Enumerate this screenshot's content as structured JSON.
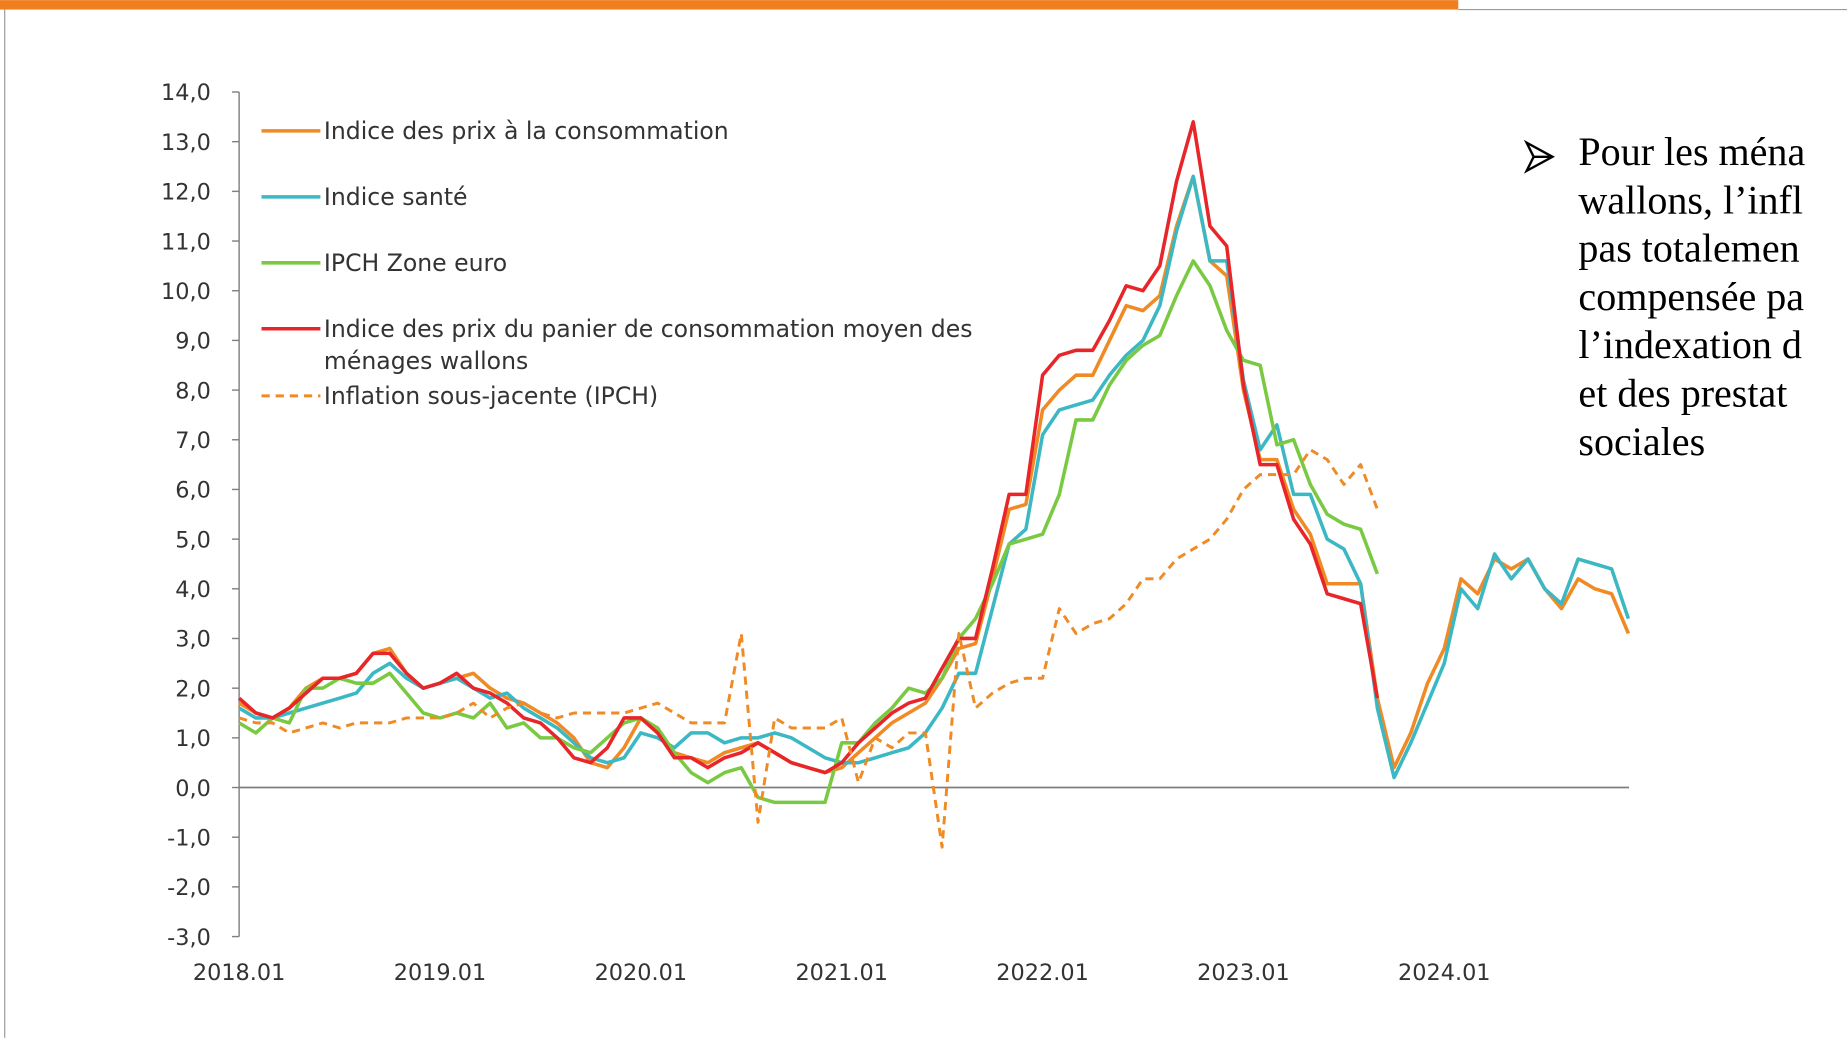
{
  "chart_data": {
    "type": "line",
    "categories": [
      "2018.01",
      null,
      null,
      null,
      null,
      null,
      null,
      null,
      null,
      null,
      null,
      null,
      "2019.01",
      null,
      null,
      null,
      null,
      null,
      null,
      null,
      null,
      null,
      null,
      null,
      "2020.01",
      null,
      null,
      null,
      null,
      null,
      null,
      null,
      null,
      null,
      null,
      null,
      "2021.01",
      null,
      null,
      null,
      null,
      null,
      null,
      null,
      null,
      null,
      null,
      null,
      "2022.01",
      null,
      null,
      null,
      null,
      null,
      null,
      null,
      null,
      null,
      null,
      null,
      "2023.01",
      null,
      null,
      null,
      null,
      null,
      null,
      null,
      null,
      null,
      null,
      null,
      "2024.01",
      null,
      null,
      null,
      null,
      null,
      null,
      null,
      null,
      null,
      null,
      null
    ],
    "ylim": [
      -3,
      14
    ],
    "yticks": [
      {
        "value": -3,
        "label": "-3,0"
      },
      {
        "value": -2,
        "label": "-2,0"
      },
      {
        "value": -1,
        "label": "-1,0"
      },
      {
        "value": 0,
        "label": "0,0"
      },
      {
        "value": 1,
        "label": "1,0"
      },
      {
        "value": 2,
        "label": "2,0"
      },
      {
        "value": 3,
        "label": "3,0"
      },
      {
        "value": 4,
        "label": "4,0"
      },
      {
        "value": 5,
        "label": "5,0"
      },
      {
        "value": 6,
        "label": "6,0"
      },
      {
        "value": 7,
        "label": "7,0"
      },
      {
        "value": 8,
        "label": "8,0"
      },
      {
        "value": 9,
        "label": "9,0"
      },
      {
        "value": 10,
        "label": "10,0"
      },
      {
        "value": 11,
        "label": "11,0"
      },
      {
        "value": 12,
        "label": "12,0"
      },
      {
        "value": 13,
        "label": "13,0"
      },
      {
        "value": 14,
        "label": "14,0"
      }
    ],
    "grid": true,
    "legend": "top-left",
    "series": [
      {
        "name": "Indice des prix à la consommation",
        "color": "#f08a24",
        "dash": false,
        "values": [
          1.7,
          1.5,
          1.4,
          1.6,
          2.0,
          2.2,
          2.2,
          2.3,
          2.7,
          2.8,
          2.3,
          2.0,
          2.1,
          2.2,
          2.3,
          2.0,
          1.8,
          1.7,
          1.5,
          1.3,
          1.0,
          0.5,
          0.4,
          0.8,
          1.4,
          1.1,
          0.7,
          0.6,
          0.5,
          0.7,
          0.8,
          0.9,
          0.7,
          0.5,
          0.4,
          0.3,
          0.4,
          0.7,
          1.0,
          1.3,
          1.5,
          1.7,
          2.2,
          2.8,
          2.9,
          4.2,
          5.6,
          5.7,
          7.6,
          8.0,
          8.3,
          8.3,
          9.0,
          9.7,
          9.6,
          9.9,
          11.3,
          12.3,
          10.6,
          10.3,
          8.0,
          6.6,
          6.6,
          5.6,
          5.1,
          4.1,
          4.1,
          4.1,
          1.8,
          0.4,
          1.1,
          2.1,
          2.8,
          4.2,
          3.9,
          4.6,
          4.4,
          4.6,
          4.0,
          3.6,
          4.2,
          4.0,
          3.9,
          3.1
        ]
      },
      {
        "name": "Indice santé",
        "color": "#3bb8c3",
        "dash": false,
        "values": [
          1.6,
          1.4,
          1.4,
          1.5,
          1.6,
          1.7,
          1.8,
          1.9,
          2.3,
          2.5,
          2.2,
          2.0,
          2.1,
          2.2,
          2.0,
          1.8,
          1.9,
          1.6,
          1.4,
          1.2,
          0.9,
          0.6,
          0.5,
          0.6,
          1.1,
          1.0,
          0.8,
          1.1,
          1.1,
          0.9,
          1.0,
          1.0,
          1.1,
          1.0,
          0.8,
          0.6,
          0.5,
          0.5,
          0.6,
          0.7,
          0.8,
          1.1,
          1.6,
          2.3,
          2.3,
          3.6,
          4.9,
          5.2,
          7.1,
          7.6,
          7.7,
          7.8,
          8.3,
          8.7,
          9.0,
          9.7,
          11.2,
          12.3,
          10.6,
          10.6,
          8.2,
          6.8,
          7.3,
          5.9,
          5.9,
          5.0,
          4.8,
          4.1,
          1.6,
          0.2,
          0.9,
          1.7,
          2.5,
          4.0,
          3.6,
          4.7,
          4.2,
          4.6,
          4.0,
          3.7,
          4.6,
          4.5,
          4.4,
          3.4
        ]
      },
      {
        "name": "IPCH Zone euro",
        "color": "#7ac943",
        "dash": false,
        "values": [
          1.3,
          1.1,
          1.4,
          1.3,
          2.0,
          2.0,
          2.2,
          2.1,
          2.1,
          2.3,
          1.9,
          1.5,
          1.4,
          1.5,
          1.4,
          1.7,
          1.2,
          1.3,
          1.0,
          1.0,
          0.8,
          0.7,
          1.0,
          1.3,
          1.4,
          1.2,
          0.7,
          0.3,
          0.1,
          0.3,
          0.4,
          -0.2,
          -0.3,
          -0.3,
          -0.3,
          -0.3,
          0.9,
          0.9,
          1.3,
          1.6,
          2.0,
          1.9,
          2.2,
          3.0,
          3.4,
          4.1,
          4.9,
          5.0,
          5.1,
          5.9,
          7.4,
          7.4,
          8.1,
          8.6,
          8.9,
          9.1,
          9.9,
          10.6,
          10.1,
          9.2,
          8.6,
          8.5,
          6.9,
          7.0,
          6.1,
          5.5,
          5.3,
          5.2,
          4.3,
          null,
          null,
          null,
          null,
          null,
          null,
          null,
          null,
          null,
          null,
          null,
          null,
          null,
          null,
          null
        ]
      },
      {
        "name": "Indice des prix du panier de consommation moyen des ménages wallons",
        "color": "#e8262a",
        "dash": false,
        "values": [
          1.8,
          1.5,
          1.4,
          1.6,
          1.9,
          2.2,
          2.2,
          2.3,
          2.7,
          2.7,
          2.3,
          2.0,
          2.1,
          2.3,
          2.0,
          1.9,
          1.7,
          1.4,
          1.3,
          1.0,
          0.6,
          0.5,
          0.8,
          1.4,
          1.4,
          1.1,
          0.6,
          0.6,
          0.4,
          0.6,
          0.7,
          0.9,
          0.7,
          0.5,
          0.4,
          0.3,
          0.5,
          0.9,
          1.2,
          1.5,
          1.7,
          1.8,
          2.4,
          3.0,
          3.0,
          4.4,
          5.9,
          5.9,
          8.3,
          8.7,
          8.8,
          8.8,
          9.4,
          10.1,
          10.0,
          10.5,
          12.2,
          13.4,
          11.3,
          10.9,
          8.1,
          6.5,
          6.5,
          5.4,
          4.9,
          3.9,
          3.8,
          3.7,
          1.8,
          null,
          null,
          null,
          null,
          null,
          null,
          null,
          null,
          null,
          null,
          null,
          null,
          null,
          null,
          null
        ]
      },
      {
        "name": "Inflation sous-jacente (IPCH)",
        "color": "#f08a24",
        "dash": true,
        "values": [
          1.4,
          1.3,
          1.3,
          1.1,
          1.2,
          1.3,
          1.2,
          1.3,
          1.3,
          1.3,
          1.4,
          1.4,
          1.4,
          1.5,
          1.7,
          1.4,
          1.6,
          1.7,
          1.5,
          1.4,
          1.5,
          1.5,
          1.5,
          1.5,
          1.6,
          1.7,
          1.5,
          1.3,
          1.3,
          1.3,
          3.1,
          -0.7,
          1.4,
          1.2,
          1.2,
          1.2,
          1.4,
          0.1,
          1.0,
          0.8,
          1.1,
          1.1,
          -1.2,
          3.1,
          1.6,
          1.9,
          2.1,
          2.2,
          2.2,
          3.6,
          3.1,
          3.3,
          3.4,
          3.7,
          4.2,
          4.2,
          4.6,
          4.8,
          5.0,
          5.4,
          6.0,
          6.3,
          6.3,
          6.3,
          6.8,
          6.6,
          6.1,
          6.5,
          5.6,
          null,
          null,
          null,
          null,
          null,
          null,
          null,
          null,
          null,
          null,
          null,
          null,
          null,
          null,
          null
        ]
      }
    ]
  },
  "note": {
    "lines": [
      "Pour les ména",
      "wallons, l’infl",
      "pas totalemen",
      "compensée pa",
      "l’indexation d",
      "et des prestat",
      "sociales"
    ]
  }
}
